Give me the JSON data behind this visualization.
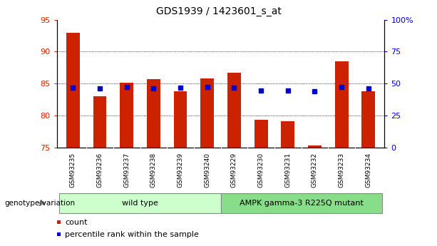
{
  "title": "GDS1939 / 1423601_s_at",
  "categories": [
    "GSM93235",
    "GSM93236",
    "GSM93237",
    "GSM93238",
    "GSM93239",
    "GSM93240",
    "GSM93229",
    "GSM93230",
    "GSM93231",
    "GSM93232",
    "GSM93233",
    "GSM93234"
  ],
  "count_values": [
    93.0,
    83.0,
    85.2,
    85.7,
    83.8,
    85.8,
    86.7,
    79.3,
    79.1,
    75.3,
    88.5,
    83.8
  ],
  "percentile_values": [
    47.0,
    46.5,
    47.2,
    46.5,
    47.0,
    47.5,
    47.0,
    44.5,
    44.5,
    44.0,
    47.2,
    46.0
  ],
  "ymin": 75,
  "ymax": 95,
  "yticks": [
    75,
    80,
    85,
    90,
    95
  ],
  "y2min": 0,
  "y2max": 100,
  "y2ticks": [
    0,
    25,
    50,
    75,
    100
  ],
  "y2ticklabels": [
    "0",
    "25",
    "50",
    "75",
    "100%"
  ],
  "bar_color": "#cc2200",
  "dot_color": "#0000cc",
  "group1_label": "wild type",
  "group2_label": "AMPK gamma-3 R225Q mutant",
  "group1_color": "#ccffcc",
  "group2_color": "#88dd88",
  "genotype_label": "genotype/variation",
  "legend_count": "count",
  "legend_percentile": "percentile rank within the sample",
  "bar_width": 0.5,
  "bg_color": "#ffffff",
  "axis_label_color_left": "#cc2200",
  "axis_label_color_right": "#0000cc",
  "tick_bg_color": "#c8c8c8"
}
